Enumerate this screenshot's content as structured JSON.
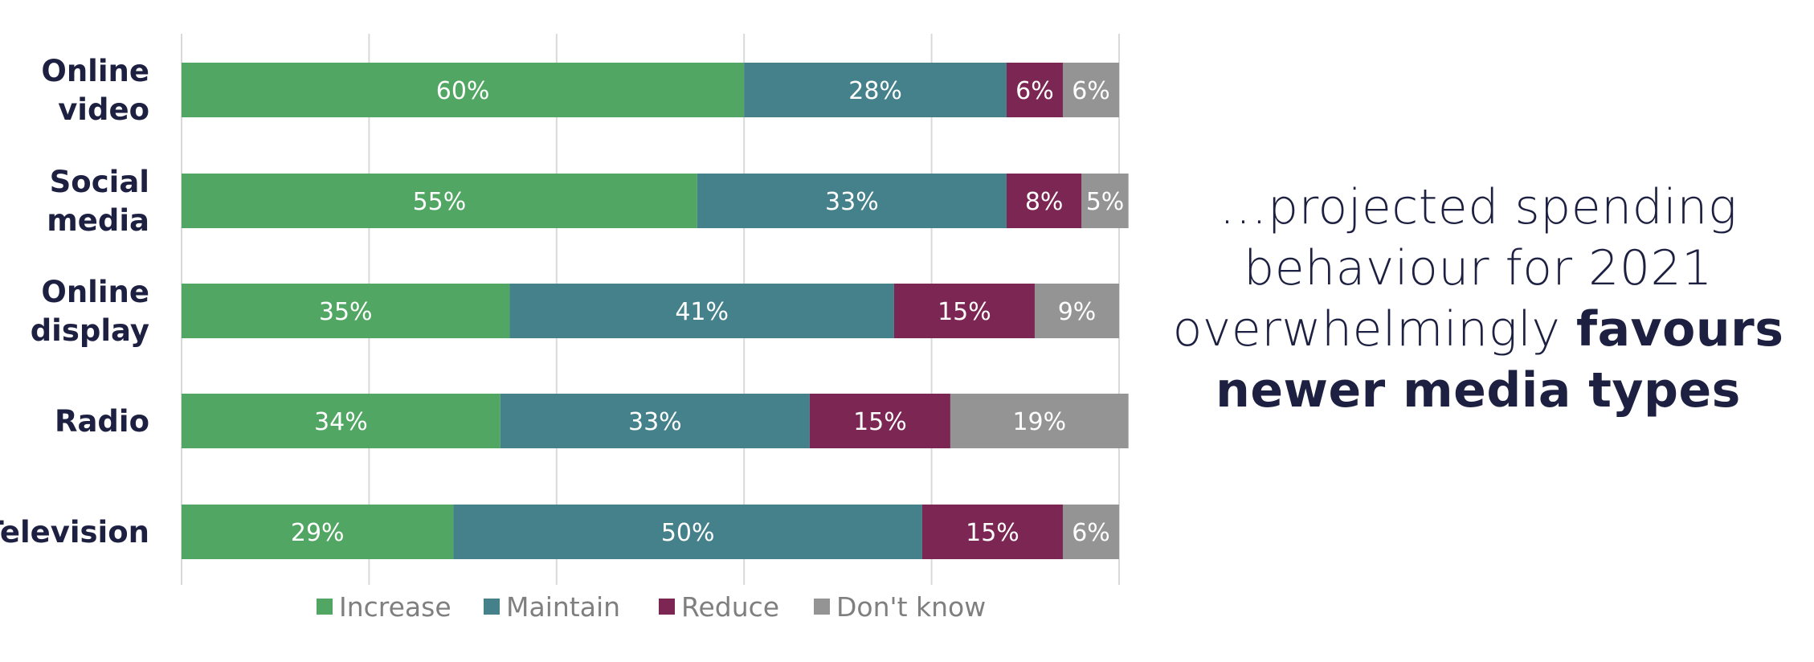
{
  "chart_data": {
    "type": "bar",
    "orientation": "horizontal",
    "stacked": true,
    "categories": [
      [
        "Online",
        "video"
      ],
      [
        "Social",
        "media"
      ],
      [
        "Online",
        "display"
      ],
      [
        "Radio"
      ],
      [
        "Television"
      ]
    ],
    "series": [
      {
        "name": "Increase",
        "color": "#52a663",
        "values": [
          60,
          55,
          35,
          34,
          29
        ]
      },
      {
        "name": "Maintain",
        "color": "#44818a",
        "values": [
          28,
          33,
          41,
          33,
          50
        ]
      },
      {
        "name": "Reduce",
        "color": "#7b2653",
        "values": [
          6,
          8,
          15,
          15,
          15
        ]
      },
      {
        "name": "Don't know",
        "color": "#949494",
        "values": [
          6,
          5,
          9,
          19,
          6
        ]
      }
    ],
    "xlim": [
      0,
      100
    ],
    "grid": true,
    "legend_position": "bottom",
    "label_suffix": "%"
  },
  "headline": {
    "line1": "…projected spending",
    "line2": "behaviour for 2021",
    "line3_regular": "overwhelmingly ",
    "line3_bold": "favours",
    "line4_bold": "newer media types"
  }
}
